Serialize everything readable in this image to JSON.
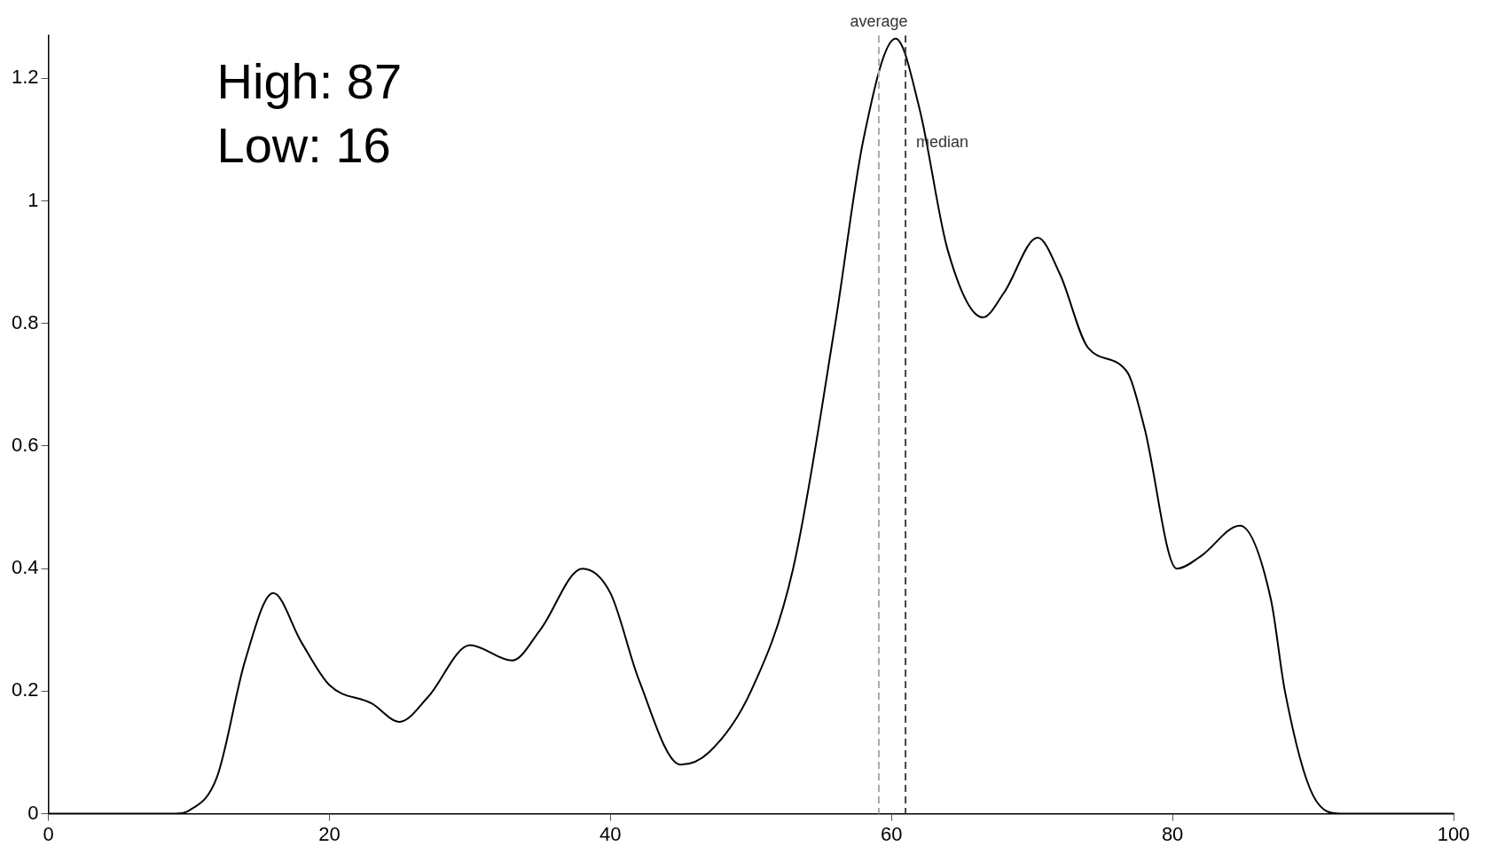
{
  "chart_data": {
    "type": "line",
    "x": [
      0,
      9,
      10,
      12,
      14,
      16,
      18,
      20,
      23,
      25,
      27,
      30,
      33,
      35,
      38,
      40,
      42,
      45,
      47,
      50,
      53,
      56,
      58,
      60.3,
      62,
      64,
      66.5,
      68,
      70.4,
      72,
      74,
      76.8,
      78,
      80.3,
      82,
      84.8,
      87,
      88,
      90,
      92,
      100
    ],
    "values": [
      0,
      0,
      0.005,
      0.06,
      0.25,
      0.36,
      0.28,
      0.21,
      0.18,
      0.15,
      0.19,
      0.275,
      0.25,
      0.3,
      0.4,
      0.36,
      0.22,
      0.08,
      0.1,
      0.2,
      0.4,
      0.8,
      1.1,
      1.265,
      1.15,
      0.92,
      0.81,
      0.85,
      0.94,
      0.88,
      0.76,
      0.72,
      0.63,
      0.4,
      0.42,
      0.47,
      0.35,
      0.2,
      0.03,
      0,
      0
    ],
    "color": "#000000",
    "marker": "none",
    "line_style": "solid",
    "xlim": [
      0,
      100
    ],
    "xticks": [
      0,
      20,
      40,
      60,
      80,
      100
    ],
    "ylim": [
      0,
      1.27
    ],
    "yticks": [
      0,
      0.2,
      0.4,
      0.6,
      0.8,
      1,
      1.2
    ],
    "grid": false,
    "legend": false,
    "ref_lines": [
      {
        "axis": "x",
        "value": 59.1,
        "label": "average",
        "color": "#aaaaaa",
        "line_style": "dashed"
      },
      {
        "axis": "x",
        "value": 61,
        "label": "median",
        "color": "#444444",
        "line_style": "dashed"
      }
    ],
    "annotations": [
      "High: 87",
      "Low: 16"
    ]
  }
}
